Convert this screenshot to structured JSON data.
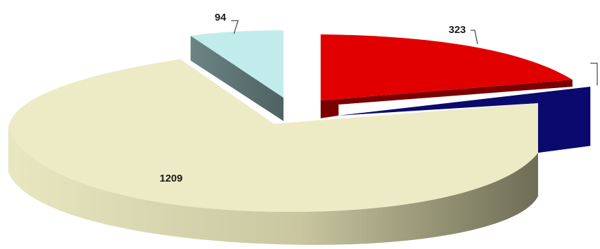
{
  "chart_data": {
    "type": "pie",
    "three_d": true,
    "exploded": true,
    "title": "",
    "legend": "none",
    "slices": [
      {
        "value": 323,
        "label": "323",
        "color": "#e00000",
        "side_color": "#7a0000"
      },
      {
        "value": null,
        "label": "",
        "color": "#0a0a6e",
        "side_color": "#05053a"
      },
      {
        "value": 1209,
        "label": "1209",
        "color": "#ecebc5",
        "side_color": "#8a8a6a"
      },
      {
        "value": 94,
        "label": "94",
        "color": "#c2ecec",
        "side_color": "#5a7070"
      }
    ]
  }
}
